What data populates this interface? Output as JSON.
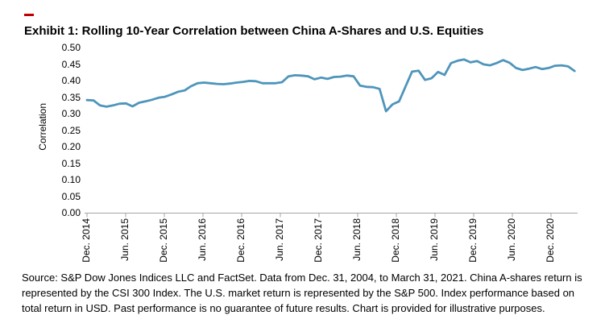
{
  "page": {
    "background": "#ffffff"
  },
  "accent": {
    "red_dash_color": "#c00000"
  },
  "title": "Exhibit 1: Rolling 10-Year Correlation between China A-Shares and U.S. Equities",
  "chart_data": {
    "type": "line",
    "title": "Exhibit 1: Rolling 10-Year Correlation between China A-Shares and U.S. Equities",
    "xlabel": "",
    "ylabel": "Correlation",
    "ylim": [
      0.0,
      0.5
    ],
    "y_tick_step": 0.05,
    "y_tick_labels": [
      "0.50",
      "0.45",
      "0.40",
      "0.35",
      "0.30",
      "0.25",
      "0.20",
      "0.15",
      "0.10",
      "0.05",
      "0.00"
    ],
    "x_tick_labels": [
      "Dec. 2014",
      "Jun. 2015",
      "Dec. 2015",
      "Jun. 2016",
      "Dec. 2016",
      "Jun. 2017",
      "Dec. 2017",
      "Jun. 2018",
      "Dec. 2018",
      "Jun. 2019",
      "Dec. 2019",
      "Jun. 2020",
      "Dec. 2020"
    ],
    "x_frequency": "monthly",
    "x_range": [
      "Dec. 2014",
      "Mar. 2021"
    ],
    "grid": false,
    "legend_position": "none",
    "line_color": "#4e95bb",
    "axis_color": "#a6a6a6",
    "series": [
      {
        "name": "Rolling 10-year correlation between China A-shares (CSI 300) and U.S. equities (S&P 500)",
        "values": [
          0.341,
          0.34,
          0.325,
          0.321,
          0.325,
          0.33,
          0.331,
          0.322,
          0.333,
          0.337,
          0.342,
          0.348,
          0.351,
          0.358,
          0.366,
          0.37,
          0.383,
          0.392,
          0.394,
          0.392,
          0.39,
          0.389,
          0.391,
          0.394,
          0.396,
          0.399,
          0.398,
          0.392,
          0.392,
          0.392,
          0.395,
          0.413,
          0.416,
          0.415,
          0.413,
          0.404,
          0.409,
          0.405,
          0.411,
          0.412,
          0.415,
          0.413,
          0.385,
          0.381,
          0.38,
          0.375,
          0.307,
          0.328,
          0.337,
          0.382,
          0.427,
          0.43,
          0.402,
          0.407,
          0.426,
          0.417,
          0.453,
          0.46,
          0.464,
          0.455,
          0.459,
          0.449,
          0.446,
          0.453,
          0.462,
          0.454,
          0.438,
          0.432,
          0.436,
          0.441,
          0.435,
          0.438,
          0.445,
          0.446,
          0.443,
          0.429
        ]
      }
    ]
  },
  "source_note": {
    "lines": [
      "Source: S&P Dow Jones Indices LLC and FactSet. Data from Dec. 31, 2004, to March 31, 2021. China A-shares return is",
      "represented by the CSI 300 Index. The U.S. market return is represented by the S&P 500. Index performance based on",
      "total return in USD. Past performance is no guarantee of future results. Chart is provided for illustrative purposes."
    ]
  }
}
